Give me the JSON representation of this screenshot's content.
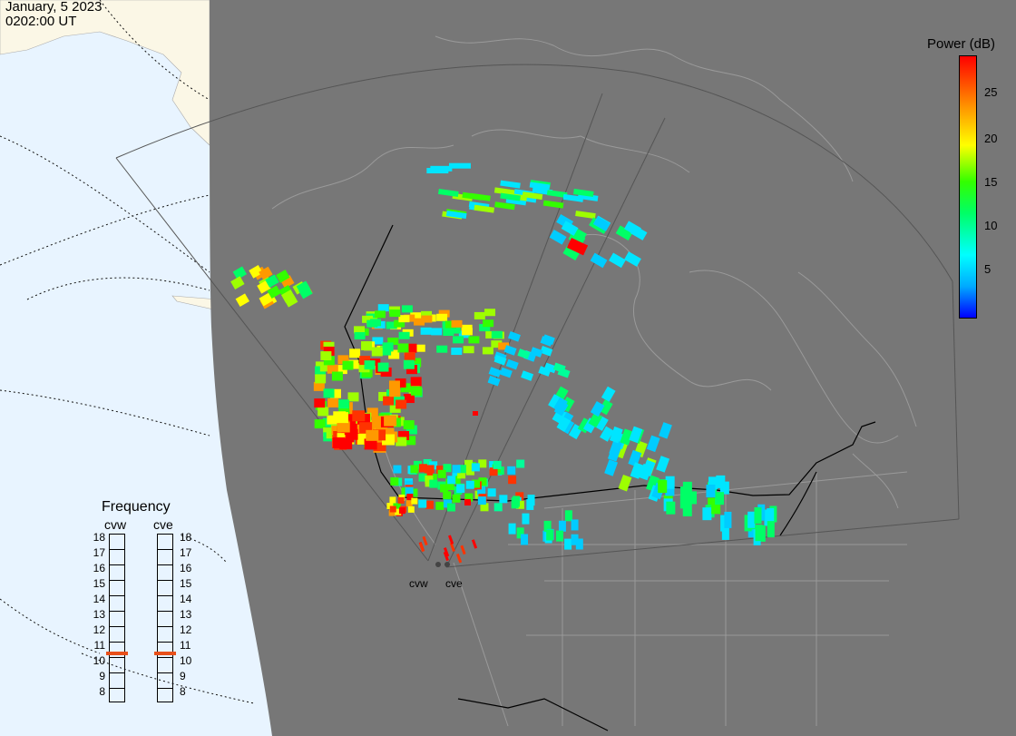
{
  "header": {
    "date": "January, 5 2023",
    "time": "0202:00 UT"
  },
  "colorbar": {
    "title": "Power (dB)",
    "ticks": [
      "25",
      "20",
      "15",
      "10",
      "5"
    ]
  },
  "frequency": {
    "title": "Frequency",
    "radars": [
      "cvw",
      "cve"
    ],
    "levels": [
      "18",
      "17",
      "16",
      "15",
      "14",
      "13",
      "12",
      "11",
      "10",
      "9",
      "8"
    ],
    "current_mhz": {
      "cvw": 10.7,
      "cve": 10.7
    }
  },
  "sites": {
    "cvw": "cvw",
    "cve": "cve"
  },
  "colors": {
    "night": "#777777",
    "ocean": "#e8f4ff",
    "land_day": "#fbf7e6",
    "marker": "#e8501a"
  }
}
